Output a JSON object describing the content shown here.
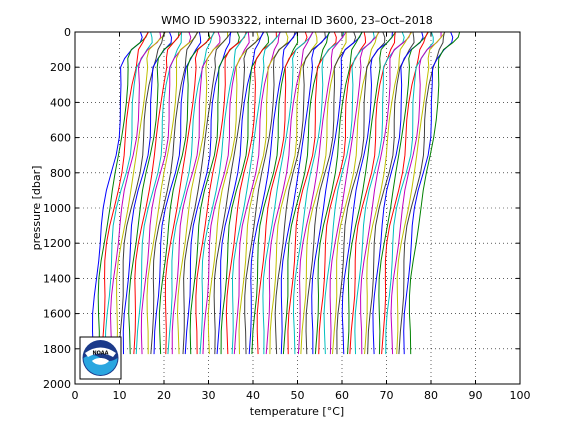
{
  "chart_data": {
    "type": "line",
    "title": "WMO ID 5903322, internal ID 3600, 23–Oct–2018",
    "xlabel": "temperature [°C]",
    "ylabel": "pressure [dbar]",
    "xlim": [
      0,
      100
    ],
    "ylim": [
      2000,
      0
    ],
    "y_reversed": true,
    "xticks": [
      "0",
      "10",
      "20",
      "30",
      "40",
      "50",
      "60",
      "70",
      "80",
      "90",
      "100"
    ],
    "yticks": [
      "0",
      "200",
      "400",
      "600",
      "800",
      "1000",
      "1200",
      "1400",
      "1600",
      "1800",
      "2000"
    ],
    "grid": true,
    "waterfall_offset_degC": 1.0,
    "profile_count": 72,
    "base_profile": {
      "pressure": [
        0,
        30,
        60,
        100,
        150,
        200,
        300,
        400,
        500,
        600,
        700,
        800,
        900,
        1000,
        1100,
        1200,
        1300,
        1400,
        1500,
        1600,
        1700,
        1830
      ],
      "temperature": [
        14.7,
        14.5,
        13.9,
        12.4,
        11.5,
        11.0,
        10.6,
        10.2,
        9.9,
        9.6,
        9.1,
        8.3,
        7.4,
        6.6,
        5.9,
        5.4,
        5.0,
        4.7,
        4.5,
        4.3,
        4.2,
        4.1
      ]
    },
    "series_colors": [
      "#0000ff",
      "#008000",
      "#ff0000",
      "#00bfbf",
      "#bf00bf",
      "#bfbf00",
      "#404040"
    ]
  },
  "logo": {
    "label": "NOAA"
  }
}
